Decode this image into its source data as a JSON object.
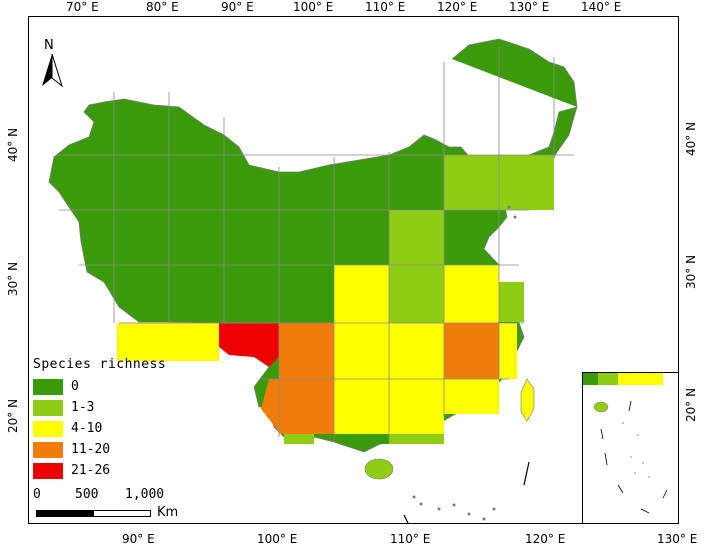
{
  "map": {
    "top_longitudes": [
      "70° E",
      "80° E",
      "90° E",
      "100° E",
      "110° E",
      "120° E",
      "130° E",
      "140° E"
    ],
    "bottom_longitudes": [
      "90° E",
      "100° E",
      "110° E",
      "120° E",
      "130° E"
    ],
    "left_latitudes": [
      "40° N",
      "30° N",
      "20° N"
    ],
    "right_latitudes": [
      "40° N",
      "30° N",
      "20° N"
    ],
    "north_label": "N"
  },
  "legend": {
    "title": "Species richness",
    "items": [
      {
        "label": "0",
        "color": "#3a9a0a"
      },
      {
        "label": "1-3",
        "color": "#8fcc14"
      },
      {
        "label": "4-10",
        "color": "#ffff00"
      },
      {
        "label": "11-20",
        "color": "#f07d0b"
      },
      {
        "label": "21-26",
        "color": "#ee0000"
      }
    ]
  },
  "scale": {
    "labels": [
      "0",
      "500",
      "1,000"
    ],
    "unit": "Km"
  }
}
